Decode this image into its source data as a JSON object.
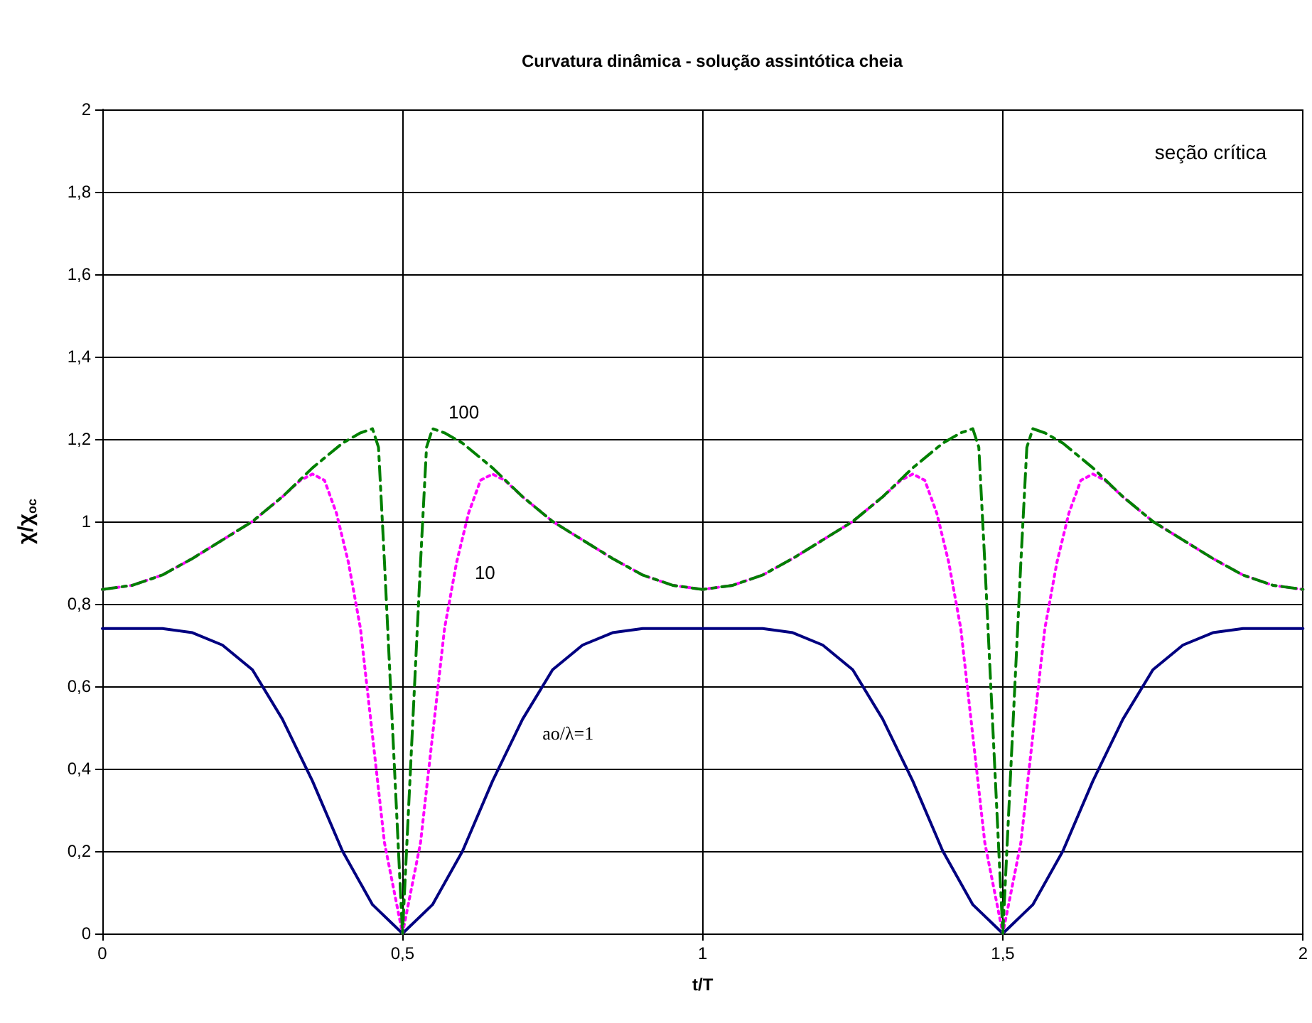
{
  "chart_data": {
    "type": "line",
    "title": "Curvatura dinâmica - solução assintótica cheia",
    "xlabel": "t/T",
    "ylabel": "χ/χ$_{oc}$",
    "xlim": [
      0,
      2
    ],
    "xticks": [
      0,
      {
        "value": 0.5,
        "label": "0,5"
      },
      1,
      {
        "value": 1.5,
        "label": "1,5"
      },
      2
    ],
    "ylim": [
      0,
      2
    ],
    "yticks": [
      0,
      {
        "value": 0.2,
        "label": "0,2"
      },
      {
        "value": 0.4,
        "label": "0,4"
      },
      {
        "value": 0.6,
        "label": "0,6"
      },
      {
        "value": 0.8,
        "label": "0,8"
      },
      1,
      {
        "value": 1.2,
        "label": "1,2"
      },
      {
        "value": 1.4,
        "label": "1,4"
      },
      {
        "value": 1.6,
        "label": "1,6"
      },
      {
        "value": 1.8,
        "label": "1,8"
      },
      2
    ],
    "grid": true,
    "legend": false,
    "marker": "none",
    "series": [
      {
        "name": "ao/λ=1",
        "color": "#000080",
        "line_style": "solid",
        "x": [
          0,
          0.1,
          0.15,
          0.2,
          0.25,
          0.3,
          0.35,
          0.4,
          0.45,
          0.5,
          0.55,
          0.6,
          0.65,
          0.7,
          0.75,
          0.8,
          0.85,
          0.9,
          1,
          1.1,
          1.15,
          1.2,
          1.25,
          1.3,
          1.35,
          1.4,
          1.45,
          1.5,
          1.55,
          1.6,
          1.65,
          1.7,
          1.75,
          1.8,
          1.85,
          1.9,
          2
        ],
        "values": [
          0.74,
          0.74,
          0.73,
          0.7,
          0.64,
          0.52,
          0.37,
          0.2,
          0.07,
          0,
          0.07,
          0.2,
          0.37,
          0.52,
          0.64,
          0.7,
          0.73,
          0.74,
          0.74,
          0.74,
          0.73,
          0.7,
          0.64,
          0.52,
          0.37,
          0.2,
          0.07,
          0,
          0.07,
          0.2,
          0.37,
          0.52,
          0.64,
          0.7,
          0.73,
          0.74,
          0.74
        ]
      },
      {
        "name": "10",
        "color": "#ff00ff",
        "line_style": "dotted",
        "x": [
          0,
          0.05,
          0.1,
          0.15,
          0.2,
          0.25,
          0.3,
          0.33,
          0.35,
          0.37,
          0.39,
          0.41,
          0.43,
          0.45,
          0.47,
          0.5,
          0.53,
          0.55,
          0.57,
          0.59,
          0.61,
          0.63,
          0.65,
          0.67,
          0.7,
          0.75,
          0.8,
          0.85,
          0.9,
          0.95,
          1,
          1.05,
          1.1,
          1.15,
          1.2,
          1.25,
          1.3,
          1.33,
          1.35,
          1.37,
          1.39,
          1.41,
          1.43,
          1.45,
          1.47,
          1.5,
          1.53,
          1.55,
          1.57,
          1.59,
          1.61,
          1.63,
          1.65,
          1.67,
          1.7,
          1.75,
          1.8,
          1.85,
          1.9,
          1.95,
          2
        ],
        "values": [
          0.835,
          0.845,
          0.87,
          0.91,
          0.955,
          1.0,
          1.06,
          1.1,
          1.115,
          1.1,
          1.02,
          0.9,
          0.74,
          0.48,
          0.22,
          0,
          0.22,
          0.48,
          0.74,
          0.9,
          1.02,
          1.1,
          1.115,
          1.1,
          1.06,
          1.0,
          0.955,
          0.91,
          0.87,
          0.845,
          0.835,
          0.845,
          0.87,
          0.91,
          0.955,
          1.0,
          1.06,
          1.1,
          1.115,
          1.1,
          1.02,
          0.9,
          0.74,
          0.48,
          0.22,
          0,
          0.22,
          0.48,
          0.74,
          0.9,
          1.02,
          1.1,
          1.115,
          1.1,
          1.06,
          1.0,
          0.955,
          0.91,
          0.87,
          0.845,
          0.835
        ]
      },
      {
        "name": "100",
        "color": "#008000",
        "line_style": "dashed",
        "x": [
          0,
          0.05,
          0.1,
          0.15,
          0.2,
          0.25,
          0.3,
          0.35,
          0.4,
          0.43,
          0.45,
          0.46,
          0.47,
          0.48,
          0.49,
          0.5,
          0.51,
          0.52,
          0.53,
          0.54,
          0.55,
          0.57,
          0.6,
          0.65,
          0.7,
          0.75,
          0.8,
          0.85,
          0.9,
          0.95,
          1,
          1.05,
          1.1,
          1.15,
          1.2,
          1.25,
          1.3,
          1.35,
          1.4,
          1.43,
          1.45,
          1.46,
          1.47,
          1.48,
          1.49,
          1.5,
          1.51,
          1.52,
          1.53,
          1.54,
          1.55,
          1.57,
          1.6,
          1.65,
          1.7,
          1.75,
          1.8,
          1.85,
          1.9,
          1.95,
          2
        ],
        "values": [
          0.835,
          0.845,
          0.87,
          0.91,
          0.955,
          1.0,
          1.06,
          1.13,
          1.19,
          1.215,
          1.225,
          1.18,
          0.9,
          0.6,
          0.3,
          0,
          0.3,
          0.6,
          0.9,
          1.18,
          1.225,
          1.215,
          1.19,
          1.13,
          1.06,
          1.0,
          0.955,
          0.91,
          0.87,
          0.845,
          0.835,
          0.845,
          0.87,
          0.91,
          0.955,
          1.0,
          1.06,
          1.13,
          1.19,
          1.215,
          1.225,
          1.18,
          0.9,
          0.6,
          0.3,
          0,
          0.3,
          0.6,
          0.9,
          1.18,
          1.225,
          1.215,
          1.19,
          1.13,
          1.06,
          1.0,
          0.955,
          0.91,
          0.87,
          0.845,
          0.835
        ]
      }
    ],
    "annotations": [
      "seção crítica"
    ]
  }
}
